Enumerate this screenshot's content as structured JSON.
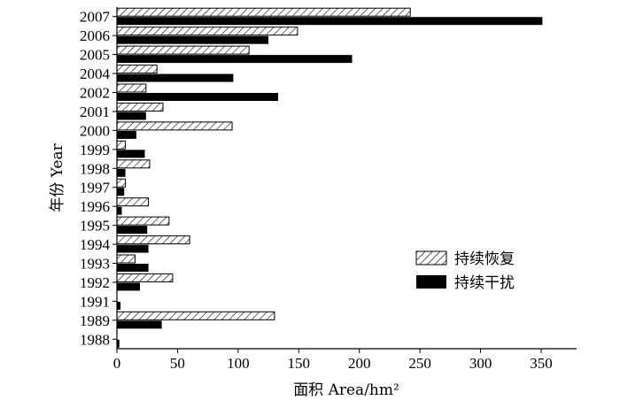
{
  "chart_data": {
    "type": "bar",
    "orientation": "horizontal",
    "categories": [
      "2007",
      "2006",
      "2005",
      "2004",
      "2002",
      "2001",
      "2000",
      "1999",
      "1998",
      "1997",
      "1996",
      "1995",
      "1994",
      "1993",
      "1992",
      "1991",
      "1989",
      "1988"
    ],
    "series": [
      {
        "name": "持续恢复",
        "pattern": "hatched",
        "values": [
          242,
          149,
          109,
          33,
          24,
          38,
          95,
          7,
          27,
          7,
          26,
          43,
          60,
          15,
          46,
          0,
          130,
          0
        ]
      },
      {
        "name": "持续干扰",
        "pattern": "solid",
        "values": [
          351,
          125,
          194,
          96,
          133,
          24,
          16,
          23,
          7,
          6,
          4,
          25,
          26,
          26,
          19,
          3,
          37,
          2
        ]
      }
    ],
    "xlabel": "面积 Area/hm²",
    "ylabel": "年份 Year",
    "xlim": [
      0,
      380
    ],
    "xticks": [
      0,
      50,
      100,
      150,
      200,
      250,
      300,
      350
    ],
    "grid": false,
    "legend_position": "bottom-right",
    "colors": {
      "solid": "#000000",
      "hatch": "#000000",
      "background": "#ffffff"
    }
  }
}
